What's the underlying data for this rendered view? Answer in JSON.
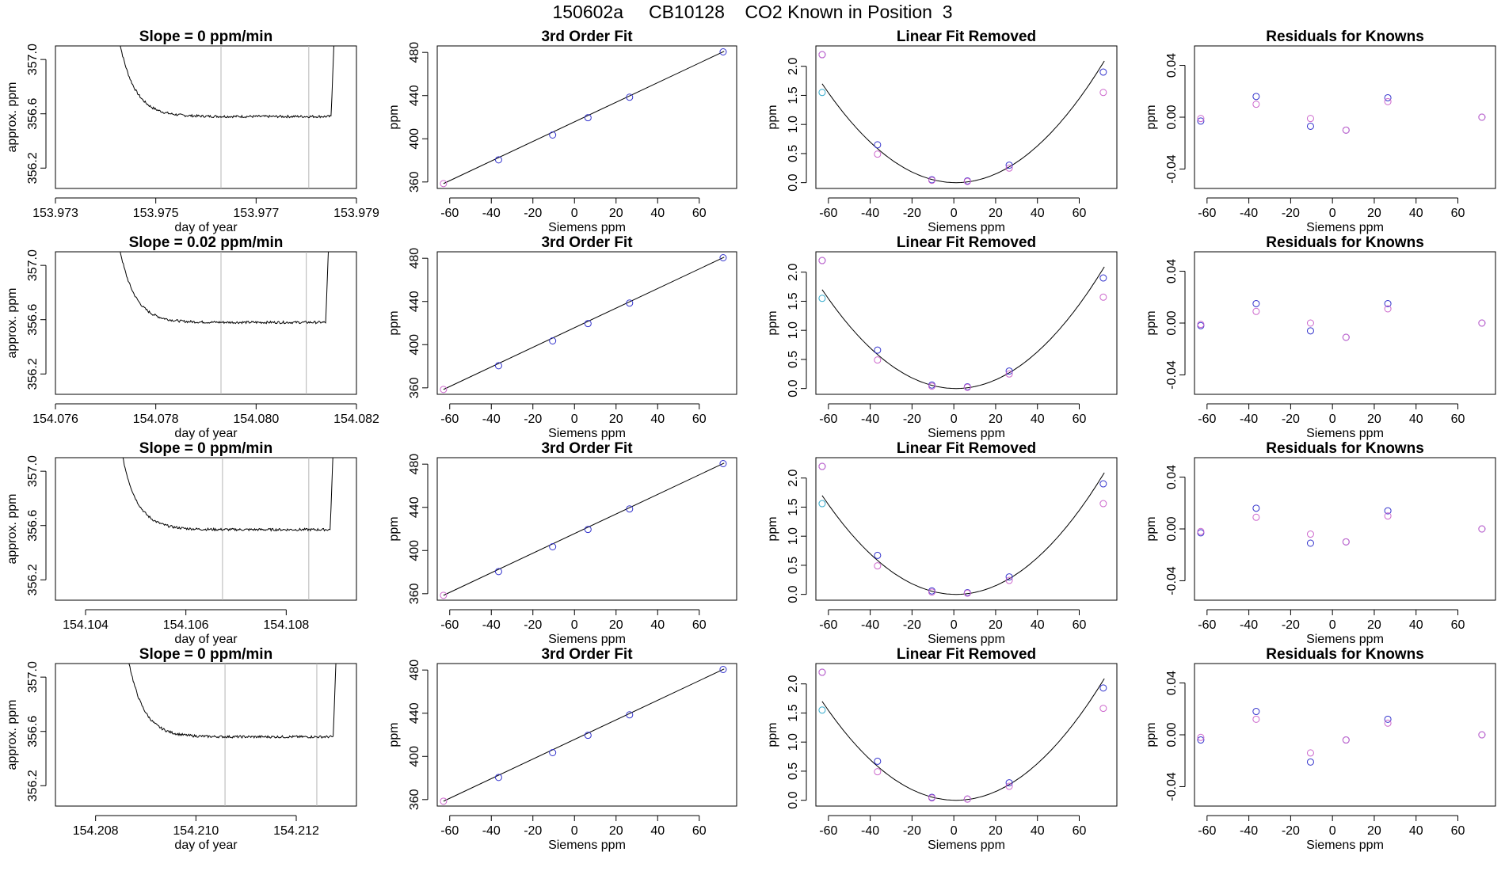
{
  "title": "150602a     CB10128    CO2 Known in Position  3",
  "colors": {
    "axis": "#000000",
    "series_fit": "#3333cc",
    "series_alt": "#cc66cc",
    "series_cyan": "#33aacc",
    "vline": "#b4b4b4",
    "mark_red": "#e03030"
  },
  "chart_data": [
    {
      "type": "line",
      "row": 1,
      "title": "Slope =  0  ppm/min",
      "xlabel": "day of year",
      "ylabel": "approx. ppm",
      "xlim": [
        153.973,
        153.979
      ],
      "ylim": [
        356.05,
        357.1
      ],
      "xticks": [
        "153.973",
        "153.975",
        "153.977",
        "153.979"
      ],
      "xtick_values": [
        153.973,
        153.975,
        153.977,
        153.979
      ],
      "yticks": [
        "356.2",
        "356.6",
        "357.0"
      ],
      "ytick_values": [
        356.2,
        356.6,
        357.0
      ],
      "vlines": [
        153.9763,
        153.97805
      ],
      "trace": {
        "x_start": 153.97424,
        "x_end": 153.97856,
        "start_y": 357.2,
        "plateau_y": 356.58,
        "end_y": 357.2
      }
    },
    {
      "type": "line",
      "row": 2,
      "title": "Slope =  0.02  ppm/min",
      "xlabel": "day of year",
      "ylabel": "approx. ppm",
      "xlim": [
        154.076,
        154.082
      ],
      "ylim": [
        356.05,
        357.1
      ],
      "xticks": [
        "154.076",
        "154.078",
        "154.080",
        "154.082"
      ],
      "xtick_values": [
        154.076,
        154.078,
        154.08,
        154.082
      ],
      "yticks": [
        "356.2",
        "356.6",
        "357.0"
      ],
      "ytick_values": [
        356.2,
        356.6,
        357.0
      ],
      "vlines": [
        154.0793,
        154.081
      ],
      "trace": {
        "x_start": 154.07724,
        "x_end": 154.08145,
        "start_y": 357.2,
        "plateau_y": 356.58,
        "end_y": 357.2
      }
    },
    {
      "type": "line",
      "row": 3,
      "title": "Slope =  0  ppm/min",
      "xlabel": "day of year",
      "ylabel": "approx. ppm",
      "xlim": [
        154.1034,
        154.1094
      ],
      "ylim": [
        356.05,
        357.1
      ],
      "xticks": [
        "154.104",
        "154.106",
        "154.108"
      ],
      "xtick_values": [
        154.104,
        154.106,
        154.108
      ],
      "yticks": [
        "356.2",
        "356.6",
        "357.0"
      ],
      "ytick_values": [
        356.2,
        356.6,
        357.0
      ],
      "vlines": [
        154.10673,
        154.10845
      ],
      "trace": {
        "x_start": 154.10469,
        "x_end": 154.10894,
        "start_y": 357.2,
        "plateau_y": 356.57,
        "end_y": 357.2
      }
    },
    {
      "type": "line",
      "row": 4,
      "title": "Slope =  0  ppm/min",
      "xlabel": "day of year",
      "ylabel": "approx. ppm",
      "xlim": [
        154.2072,
        154.2132
      ],
      "ylim": [
        356.05,
        357.1
      ],
      "xticks": [
        "154.208",
        "154.210",
        "154.212"
      ],
      "xtick_values": [
        154.208,
        154.21,
        154.212
      ],
      "yticks": [
        "356.2",
        "356.6",
        "357.0"
      ],
      "ytick_values": [
        356.2,
        356.6,
        357.0
      ],
      "vlines": [
        154.21058,
        154.21241
      ],
      "trace": {
        "x_start": 154.20862,
        "x_end": 154.2128,
        "start_y": 357.2,
        "plateau_y": 356.56,
        "end_y": 357.2
      }
    },
    {
      "type": "scatter",
      "title": "3rd Order Fit",
      "xlabel": "Siemens ppm",
      "ylabel": "ppm",
      "xlim": [
        -66,
        78
      ],
      "ylim": [
        354,
        486
      ],
      "xticks": [
        "-60",
        "-40",
        "-20",
        "0",
        "20",
        "40",
        "60"
      ],
      "xtick_values": [
        -60,
        -40,
        -20,
        0,
        20,
        40,
        60
      ],
      "yticks": [
        "360",
        "400",
        "440",
        "480"
      ],
      "ytick_values": [
        360,
        400,
        440,
        480
      ],
      "fit_line": [
        [
          -63,
          358.5
        ],
        [
          72,
          481
        ]
      ],
      "series": [
        {
          "x": [
            -63,
            -36.5,
            -10.5,
            6.5,
            26.5,
            71.5
          ],
          "y": [
            358.5,
            380.5,
            403.5,
            419.5,
            438.5,
            480.5
          ]
        }
      ]
    },
    {
      "type": "scatter",
      "title": "3rd Order Fit",
      "xlabel": "Siemens ppm",
      "ylabel": "ppm",
      "xlim": [
        -66,
        78
      ],
      "ylim": [
        354,
        486
      ],
      "xticks": [
        "-60",
        "-40",
        "-20",
        "0",
        "20",
        "40",
        "60"
      ],
      "xtick_values": [
        -60,
        -40,
        -20,
        0,
        20,
        40,
        60
      ],
      "yticks": [
        "360",
        "400",
        "440",
        "480"
      ],
      "ytick_values": [
        360,
        400,
        440,
        480
      ],
      "fit_line": [
        [
          -63,
          358.5
        ],
        [
          72,
          481
        ]
      ],
      "series": [
        {
          "x": [
            -63,
            -36.5,
            -10.5,
            6.5,
            26.5,
            71.5
          ],
          "y": [
            358.5,
            380.5,
            403.5,
            419.5,
            438.5,
            480.5
          ]
        }
      ]
    },
    {
      "type": "scatter",
      "title": "3rd Order Fit",
      "xlabel": "Siemens ppm",
      "ylabel": "ppm",
      "xlim": [
        -66,
        78
      ],
      "ylim": [
        354,
        486
      ],
      "xticks": [
        "-60",
        "-40",
        "-20",
        "0",
        "20",
        "40",
        "60"
      ],
      "xtick_values": [
        -60,
        -40,
        -20,
        0,
        20,
        40,
        60
      ],
      "yticks": [
        "360",
        "400",
        "440",
        "480"
      ],
      "ytick_values": [
        360,
        400,
        440,
        480
      ],
      "fit_line": [
        [
          -63,
          358.5
        ],
        [
          72,
          481
        ]
      ],
      "series": [
        {
          "x": [
            -63,
            -36.5,
            -10.5,
            6.5,
            26.5,
            71.5
          ],
          "y": [
            358.5,
            380.5,
            403.5,
            419.5,
            438.5,
            480.5
          ]
        }
      ]
    },
    {
      "type": "scatter",
      "title": "3rd Order Fit",
      "xlabel": "Siemens ppm",
      "ylabel": "ppm",
      "xlim": [
        -66,
        78
      ],
      "ylim": [
        354,
        486
      ],
      "xticks": [
        "-60",
        "-40",
        "-20",
        "0",
        "20",
        "40",
        "60"
      ],
      "xtick_values": [
        -60,
        -40,
        -20,
        0,
        20,
        40,
        60
      ],
      "yticks": [
        "360",
        "400",
        "440",
        "480"
      ],
      "ytick_values": [
        360,
        400,
        440,
        480
      ],
      "fit_line": [
        [
          -63,
          358.5
        ],
        [
          72,
          481
        ]
      ],
      "series": [
        {
          "x": [
            -63,
            -36.5,
            -10.5,
            6.5,
            26.5,
            71.5
          ],
          "y": [
            358.5,
            380.5,
            403.5,
            419.5,
            438.5,
            480.5
          ]
        }
      ]
    },
    {
      "type": "scatter",
      "title": "Linear Fit Removed",
      "xlabel": "Siemens ppm",
      "ylabel": "ppm",
      "xlim": [
        -66,
        78
      ],
      "ylim": [
        -0.1,
        2.35
      ],
      "xticks": [
        "-60",
        "-40",
        "-20",
        "0",
        "20",
        "40",
        "60"
      ],
      "xtick_values": [
        -60,
        -40,
        -20,
        0,
        20,
        40,
        60
      ],
      "yticks": [
        "0.0",
        "0.5",
        "1.0",
        "1.5",
        "2.0"
      ],
      "ytick_values": [
        0,
        0.5,
        1.0,
        1.5,
        2.0
      ],
      "curve": {
        "vertex_x": 1.0,
        "vertex_y": 0.0,
        "a": 0.000415,
        "x_from": -63,
        "x_to": 72
      },
      "series": [
        {
          "color": "fit",
          "x": [
            -63,
            -36.5,
            -10.5,
            6.5,
            26.5,
            71.5
          ],
          "y": [
            2.2,
            0.65,
            0.05,
            0.03,
            0.3,
            1.9
          ]
        },
        {
          "color": "alt",
          "x": [
            -63,
            -36.5,
            -10.5,
            6.5,
            26.5,
            71.5
          ],
          "y": [
            2.2,
            0.49,
            0.04,
            0.02,
            0.25,
            1.55
          ]
        },
        {
          "color": "cyan",
          "x": [
            -63
          ],
          "y": [
            1.55
          ]
        }
      ]
    },
    {
      "type": "scatter",
      "title": "Linear Fit Removed",
      "xlabel": "Siemens ppm",
      "ylabel": "ppm",
      "xlim": [
        -66,
        78
      ],
      "ylim": [
        -0.1,
        2.35
      ],
      "xticks": [
        "-60",
        "-40",
        "-20",
        "0",
        "20",
        "40",
        "60"
      ],
      "xtick_values": [
        -60,
        -40,
        -20,
        0,
        20,
        40,
        60
      ],
      "yticks": [
        "0.0",
        "0.5",
        "1.0",
        "1.5",
        "2.0"
      ],
      "ytick_values": [
        0,
        0.5,
        1.0,
        1.5,
        2.0
      ],
      "curve": {
        "vertex_x": 1.0,
        "vertex_y": 0.0,
        "a": 0.000415,
        "x_from": -63,
        "x_to": 72
      },
      "series": [
        {
          "color": "fit",
          "x": [
            -63,
            -36.5,
            -10.5,
            6.5,
            26.5,
            71.5
          ],
          "y": [
            2.2,
            0.66,
            0.06,
            0.03,
            0.3,
            1.9
          ]
        },
        {
          "color": "alt",
          "x": [
            -63,
            -36.5,
            -10.5,
            6.5,
            26.5,
            71.5
          ],
          "y": [
            2.2,
            0.49,
            0.04,
            0.02,
            0.25,
            1.57
          ]
        },
        {
          "color": "cyan",
          "x": [
            -63
          ],
          "y": [
            1.55
          ]
        }
      ]
    },
    {
      "type": "scatter",
      "title": "Linear Fit Removed",
      "xlabel": "Siemens ppm",
      "ylabel": "ppm",
      "xlim": [
        -66,
        78
      ],
      "ylim": [
        -0.1,
        2.35
      ],
      "xticks": [
        "-60",
        "-40",
        "-20",
        "0",
        "20",
        "40",
        "60"
      ],
      "xtick_values": [
        -60,
        -40,
        -20,
        0,
        20,
        40,
        60
      ],
      "yticks": [
        "0.0",
        "0.5",
        "1.0",
        "1.5",
        "2.0"
      ],
      "ytick_values": [
        0,
        0.5,
        1.0,
        1.5,
        2.0
      ],
      "curve": {
        "vertex_x": 1.0,
        "vertex_y": 0.0,
        "a": 0.000415,
        "x_from": -63,
        "x_to": 72
      },
      "series": [
        {
          "color": "fit",
          "x": [
            -63,
            -36.5,
            -10.5,
            6.5,
            26.5,
            71.5
          ],
          "y": [
            2.2,
            0.67,
            0.06,
            0.03,
            0.3,
            1.9
          ]
        },
        {
          "color": "alt",
          "x": [
            -63,
            -36.5,
            -10.5,
            6.5,
            26.5,
            71.5
          ],
          "y": [
            2.2,
            0.49,
            0.04,
            0.02,
            0.24,
            1.56
          ]
        },
        {
          "color": "cyan",
          "x": [
            -63
          ],
          "y": [
            1.56
          ]
        }
      ]
    },
    {
      "type": "scatter",
      "title": "Linear Fit Removed",
      "xlabel": "Siemens ppm",
      "ylabel": "ppm",
      "xlim": [
        -66,
        78
      ],
      "ylim": [
        -0.1,
        2.35
      ],
      "xticks": [
        "-60",
        "-40",
        "-20",
        "0",
        "20",
        "40",
        "60"
      ],
      "xtick_values": [
        -60,
        -40,
        -20,
        0,
        20,
        40,
        60
      ],
      "yticks": [
        "0.0",
        "0.5",
        "1.0",
        "1.5",
        "2.0"
      ],
      "ytick_values": [
        0,
        0.5,
        1.0,
        1.5,
        2.0
      ],
      "curve": {
        "vertex_x": 1.0,
        "vertex_y": 0.0,
        "a": 0.000415,
        "x_from": -63,
        "x_to": 72
      },
      "series": [
        {
          "color": "fit",
          "x": [
            -63,
            -36.5,
            -10.5,
            6.5,
            26.5,
            71.5
          ],
          "y": [
            2.2,
            0.67,
            0.05,
            0.02,
            0.3,
            1.93
          ]
        },
        {
          "color": "alt",
          "x": [
            -63,
            -36.5,
            -10.5,
            6.5,
            26.5,
            71.5
          ],
          "y": [
            2.2,
            0.49,
            0.04,
            0.02,
            0.24,
            1.58
          ]
        },
        {
          "color": "cyan",
          "x": [
            -63
          ],
          "y": [
            1.55
          ]
        }
      ]
    },
    {
      "type": "scatter",
      "title": "Residuals for Knowns",
      "xlabel": "Siemens ppm",
      "ylabel": "ppm",
      "xlim": [
        -66,
        78
      ],
      "ylim": [
        -0.055,
        0.055
      ],
      "xticks": [
        "-60",
        "-40",
        "-20",
        "0",
        "20",
        "40",
        "60"
      ],
      "xtick_values": [
        -60,
        -40,
        -20,
        0,
        20,
        40,
        60
      ],
      "yticks": [
        "-0.04",
        "0.00",
        "0.04"
      ],
      "ytick_values": [
        -0.04,
        0,
        0.04
      ],
      "series": [
        {
          "color": "fit",
          "x": [
            -63,
            -36.5,
            -10.5,
            6.5,
            26.5,
            71.5
          ],
          "y": [
            -0.003,
            0.016,
            -0.007,
            -0.01,
            0.015,
            0.0
          ]
        },
        {
          "color": "alt",
          "x": [
            -63,
            -36.5,
            -10.5,
            6.5,
            26.5,
            71.5
          ],
          "y": [
            -0.001,
            0.01,
            -0.001,
            -0.01,
            0.012,
            0.0
          ]
        }
      ]
    },
    {
      "type": "scatter",
      "title": "Residuals for Knowns",
      "xlabel": "Siemens ppm",
      "ylabel": "ppm",
      "xlim": [
        -66,
        78
      ],
      "ylim": [
        -0.055,
        0.055
      ],
      "xticks": [
        "-60",
        "-40",
        "-20",
        "0",
        "20",
        "40",
        "60"
      ],
      "xtick_values": [
        -60,
        -40,
        -20,
        0,
        20,
        40,
        60
      ],
      "yticks": [
        "-0.04",
        "0.00",
        "0.04"
      ],
      "ytick_values": [
        -0.04,
        0,
        0.04
      ],
      "series": [
        {
          "color": "fit",
          "x": [
            -63,
            -36.5,
            -10.5,
            6.5,
            26.5,
            71.5
          ],
          "y": [
            -0.002,
            0.015,
            -0.006,
            -0.011,
            0.015,
            0.0
          ]
        },
        {
          "color": "alt",
          "x": [
            -63,
            -36.5,
            -10.5,
            6.5,
            26.5,
            71.5
          ],
          "y": [
            -0.001,
            0.009,
            0.0,
            -0.011,
            0.011,
            0.0
          ]
        }
      ]
    },
    {
      "type": "scatter",
      "title": "Residuals for Knowns",
      "xlabel": "Siemens ppm",
      "ylabel": "ppm",
      "xlim": [
        -66,
        78
      ],
      "ylim": [
        -0.055,
        0.055
      ],
      "xticks": [
        "-60",
        "-40",
        "-20",
        "0",
        "20",
        "40",
        "60"
      ],
      "xtick_values": [
        -60,
        -40,
        -20,
        0,
        20,
        40,
        60
      ],
      "yticks": [
        "-0.04",
        "0.00",
        "0.04"
      ],
      "ytick_values": [
        -0.04,
        0,
        0.04
      ],
      "series": [
        {
          "color": "fit",
          "x": [
            -63,
            -36.5,
            -10.5,
            6.5,
            26.5,
            71.5
          ],
          "y": [
            -0.003,
            0.016,
            -0.011,
            -0.01,
            0.014,
            0.0
          ]
        },
        {
          "color": "alt",
          "x": [
            -63,
            -36.5,
            -10.5,
            6.5,
            26.5,
            71.5
          ],
          "y": [
            -0.002,
            0.009,
            -0.004,
            -0.01,
            0.01,
            0.0
          ]
        }
      ]
    },
    {
      "type": "scatter",
      "title": "Residuals for Knowns",
      "xlabel": "Siemens ppm",
      "ylabel": "ppm",
      "xlim": [
        -66,
        78
      ],
      "ylim": [
        -0.055,
        0.055
      ],
      "xticks": [
        "-60",
        "-40",
        "-20",
        "0",
        "20",
        "40",
        "60"
      ],
      "xtick_values": [
        -60,
        -40,
        -20,
        0,
        20,
        40,
        60
      ],
      "yticks": [
        "-0.04",
        "0.00",
        "0.04"
      ],
      "ytick_values": [
        -0.04,
        0,
        0.04
      ],
      "series": [
        {
          "color": "fit",
          "x": [
            -63,
            -36.5,
            -10.5,
            6.5,
            26.5,
            71.5
          ],
          "y": [
            -0.004,
            0.018,
            -0.021,
            -0.004,
            0.012,
            0.0
          ]
        },
        {
          "color": "alt",
          "x": [
            -63,
            -36.5,
            -10.5,
            6.5,
            26.5,
            71.5
          ],
          "y": [
            -0.002,
            0.012,
            -0.014,
            -0.004,
            0.009,
            0.0
          ]
        }
      ]
    }
  ]
}
